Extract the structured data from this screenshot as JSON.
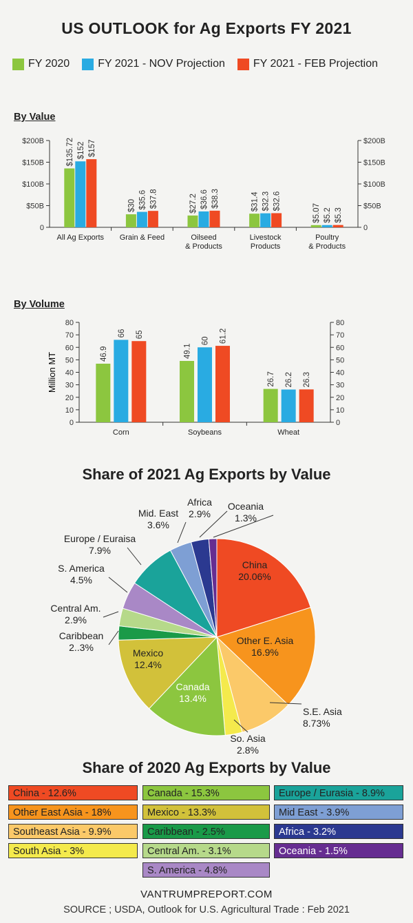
{
  "title": "US OUTLOOK for Ag Exports FY 2021",
  "legend": [
    {
      "label": "FY 2020",
      "color": "#8cc63f"
    },
    {
      "label": "FY 2021 - NOV Projection",
      "color": "#29abe2"
    },
    {
      "label": "FY 2021 - FEB Projection",
      "color": "#ef4a23"
    }
  ],
  "by_value_title": "By Value",
  "by_volume_title": "By Volume",
  "pie_title": "Share of 2021 Ag Exports by Value",
  "share2020_title": "Share of 2020 Ag Exports by Value",
  "chart_data": [
    {
      "type": "bar",
      "title": "By Value",
      "categories": [
        "All Ag Exports",
        "Grain & Feed",
        "Oilseed\n& Products",
        "Livestock\nProducts",
        "Poultry\n& Products"
      ],
      "series": [
        {
          "name": "FY 2020",
          "values": [
            135.72,
            30,
            27.2,
            31.4,
            5.07
          ],
          "labels": [
            "$135.72",
            "$30",
            "$27.2",
            "$31.4",
            "$5.07"
          ]
        },
        {
          "name": "FY 2021 - NOV Projection",
          "values": [
            152,
            35.6,
            36.6,
            32.3,
            5.2
          ],
          "labels": [
            "$152",
            "$35.6",
            "$36.6",
            "$32.3",
            "$5.2"
          ]
        },
        {
          "name": "FY 2021 - FEB Projection",
          "values": [
            157,
            37.8,
            38.3,
            32.6,
            5.3
          ],
          "labels": [
            "$157",
            "$37.8",
            "$38.3",
            "$32.6",
            "$5.3"
          ]
        }
      ],
      "ylim": [
        0,
        200
      ],
      "yticks": [
        "0",
        "$50B",
        "$100B",
        "$150B",
        "$200B"
      ],
      "ylabel": ""
    },
    {
      "type": "bar",
      "title": "By Volume",
      "categories": [
        "Corn",
        "Soybeans",
        "Wheat"
      ],
      "series": [
        {
          "name": "FY 2020",
          "values": [
            46.9,
            49.1,
            26.7
          ],
          "labels": [
            "46.9",
            "49.1",
            "26.7"
          ]
        },
        {
          "name": "FY 2021 - NOV Projection",
          "values": [
            66,
            60,
            26.2
          ],
          "labels": [
            "66",
            "60",
            "26.2"
          ]
        },
        {
          "name": "FY 2021 - FEB Projection",
          "values": [
            65,
            61.2,
            26.3
          ],
          "labels": [
            "65",
            "61.2",
            "26.3"
          ]
        }
      ],
      "ylim": [
        0,
        80
      ],
      "yticks": [
        "0",
        "10",
        "20",
        "30",
        "40",
        "50",
        "60",
        "70",
        "80"
      ],
      "ylabel": "Million MT"
    },
    {
      "type": "pie",
      "title": "Share of 2021 Ag Exports by Value",
      "slices": [
        {
          "name": "China",
          "value": 20.06,
          "label": "20.06%",
          "color": "#ef4a23"
        },
        {
          "name": "Other E. Asia",
          "value": 16.9,
          "label": "16.9%",
          "color": "#f7941d"
        },
        {
          "name": "S.E. Asia",
          "value": 8.73,
          "label": "8.73%",
          "color": "#fbc969"
        },
        {
          "name": "So. Asia",
          "value": 2.8,
          "label": "2.8%",
          "color": "#f4ea4c"
        },
        {
          "name": "Canada",
          "value": 13.4,
          "label": "13.4%",
          "color": "#8cc63f"
        },
        {
          "name": "Mexico",
          "value": 12.4,
          "label": "12.4%",
          "color": "#d2c13a"
        },
        {
          "name": "Caribbean",
          "value": 2.3,
          "label": "2..3%",
          "color": "#1a9a48"
        },
        {
          "name": "Central Am.",
          "value": 2.9,
          "label": "2.9%",
          "color": "#b6d98a"
        },
        {
          "name": "S. America",
          "value": 4.5,
          "label": "4.5%",
          "color": "#a988c6"
        },
        {
          "name": "Europe / Euraisa",
          "value": 7.9,
          "label": "7.9%",
          "color": "#1aa39a"
        },
        {
          "name": "Mid. East",
          "value": 3.6,
          "label": "3.6%",
          "color": "#7e9fd4"
        },
        {
          "name": "Africa",
          "value": 2.9,
          "label": "2.9%",
          "color": "#2b3990"
        },
        {
          "name": "Oceania",
          "value": 1.3,
          "label": "1.3%",
          "color": "#662d91"
        }
      ]
    },
    {
      "type": "table",
      "title": "Share of 2020 Ag Exports by Value",
      "columns": [
        [
          {
            "text": "China - 12.6%",
            "color": "#ef4a23",
            "light": false
          },
          {
            "text": "Other East Asia - 18%",
            "color": "#f7941d",
            "light": false
          },
          {
            "text": "Southeast Asia - 9.9%",
            "color": "#fbc969",
            "light": false
          },
          {
            "text": "South Asia - 3%",
            "color": "#f4ea4c",
            "light": false
          }
        ],
        [
          {
            "text": "Canada - 15.3%",
            "color": "#8cc63f",
            "light": false
          },
          {
            "text": "Mexico - 13.3%",
            "color": "#d2c13a",
            "light": false
          },
          {
            "text": "Caribbean - 2.5%",
            "color": "#1a9a48",
            "light": false
          },
          {
            "text": "Central Am. - 3.1%",
            "color": "#b6d98a",
            "light": false
          },
          {
            "text": "S. America - 4.8%",
            "color": "#a988c6",
            "light": false
          }
        ],
        [
          {
            "text": "Europe / Eurasia - 8.9%",
            "color": "#1aa39a",
            "light": false
          },
          {
            "text": "Mid East - 3.9%",
            "color": "#7e9fd4",
            "light": false
          },
          {
            "text": "Africa - 3.2%",
            "color": "#2b3990",
            "light": true
          },
          {
            "text": "Oceania - 1.5%",
            "color": "#662d91",
            "light": true
          }
        ]
      ]
    }
  ],
  "footer": {
    "url": "VANTRUMPREPORT.COM",
    "source": "SOURCE ; USDA, Outlook for U.S. Agricultural Trade : Feb 2021"
  }
}
